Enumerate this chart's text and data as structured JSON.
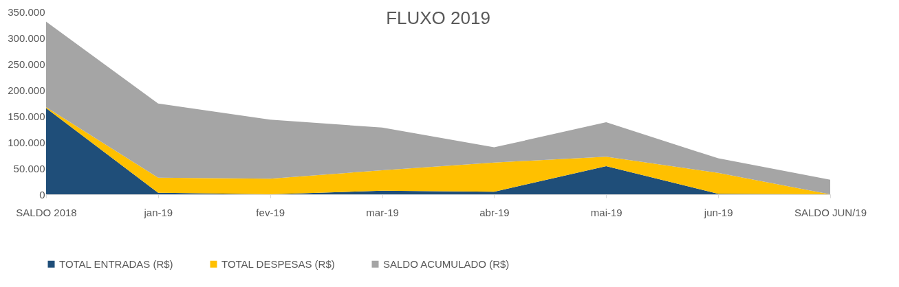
{
  "chart_data": {
    "type": "area",
    "title": "FLUXO 2019",
    "stacked": true,
    "categories": [
      "SALDO 2018",
      "jan-19",
      "fev-19",
      "mar-19",
      "abr-19",
      "mai-19",
      "jun-19",
      "SALDO JUN/19"
    ],
    "series": [
      {
        "name": "TOTAL ENTRADAS (R$)",
        "color": "#1f4e79",
        "values": [
          165000,
          3000,
          0,
          7000,
          5000,
          54000,
          1000,
          0
        ]
      },
      {
        "name": "TOTAL DESPESAS (R$)",
        "color": "#ffc000",
        "values": [
          2000,
          29000,
          30000,
          39000,
          56000,
          18000,
          40000,
          0
        ]
      },
      {
        "name": "SALDO ACUMULADO (R$)",
        "color": "#a5a5a5",
        "values": [
          164000,
          142000,
          113000,
          82000,
          29000,
          66000,
          28000,
          28000
        ]
      }
    ],
    "ylim": [
      0,
      350000
    ],
    "yticks": [
      0,
      {
        "value": 50000,
        "label": "50.000"
      },
      {
        "value": 100000,
        "label": "100.000"
      },
      {
        "value": 150000,
        "label": "150.000"
      },
      {
        "value": 200000,
        "label": "200.000"
      },
      {
        "value": 250000,
        "label": "250.000"
      },
      {
        "value": 300000,
        "label": "300.000"
      },
      {
        "value": 350000,
        "label": "350.000"
      }
    ],
    "grid": false,
    "legend": "bottom"
  }
}
